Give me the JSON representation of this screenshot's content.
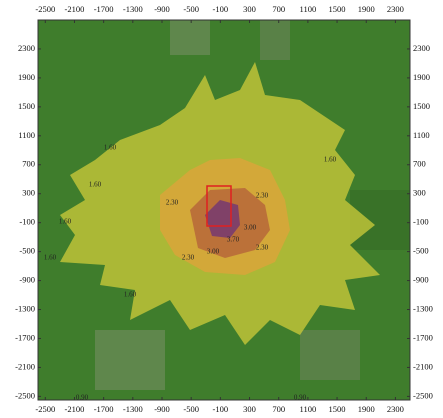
{
  "map": {
    "xlim": [
      -2600,
      2500
    ],
    "ylim": [
      -2550,
      2700
    ],
    "xticks": [
      -2500,
      -2100,
      -1700,
      -1300,
      -900,
      -500,
      -100,
      300,
      700,
      1100,
      1500,
      1900,
      2300
    ],
    "yticks": [
      2300,
      1900,
      1500,
      1100,
      700,
      300,
      -100,
      -500,
      -900,
      -1300,
      -1700,
      -2100,
      -2500
    ],
    "contour_labels": [
      "1.60",
      "1.60",
      "1.60",
      "1.60",
      "1.60",
      "2.30",
      "2.30",
      "2.30",
      "2.30",
      "3.00",
      "3.00",
      "3.70",
      "0.90",
      "0.90",
      "1.60"
    ]
  }
}
